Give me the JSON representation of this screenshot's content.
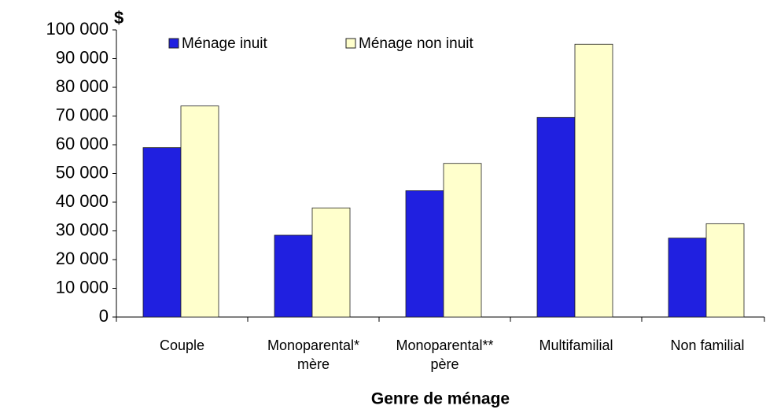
{
  "chart_data": {
    "type": "bar",
    "y_unit": "$",
    "x_label": "Genre de ménage",
    "categories": [
      [
        "Couple"
      ],
      [
        "Monoparental*",
        "mère"
      ],
      [
        "Monoparental**",
        "père"
      ],
      [
        "Multifamilial"
      ],
      [
        "Non familial"
      ]
    ],
    "series": [
      {
        "name": "Ménage inuit",
        "color": "#2020e0",
        "values": [
          59000,
          28500,
          44000,
          69500,
          27500
        ]
      },
      {
        "name": "Ménage non inuit",
        "color": "#ffffcc",
        "values": [
          73500,
          38000,
          53500,
          95000,
          32500
        ]
      }
    ],
    "ylim": [
      0,
      100000
    ],
    "yticks": [
      0,
      {
        "value": 10000,
        "label": "10 000"
      },
      {
        "value": 20000,
        "label": "20 000"
      },
      {
        "value": 30000,
        "label": "30 000"
      },
      {
        "value": 40000,
        "label": "40 000"
      },
      {
        "value": 50000,
        "label": "50 000"
      },
      {
        "value": 60000,
        "label": "60 000"
      },
      {
        "value": 70000,
        "label": "70 000"
      },
      {
        "value": 80000,
        "label": "80 000"
      },
      {
        "value": 90000,
        "label": "90 000"
      },
      {
        "value": 100000,
        "label": "100 000"
      }
    ],
    "legend": "top",
    "grid": false
  }
}
